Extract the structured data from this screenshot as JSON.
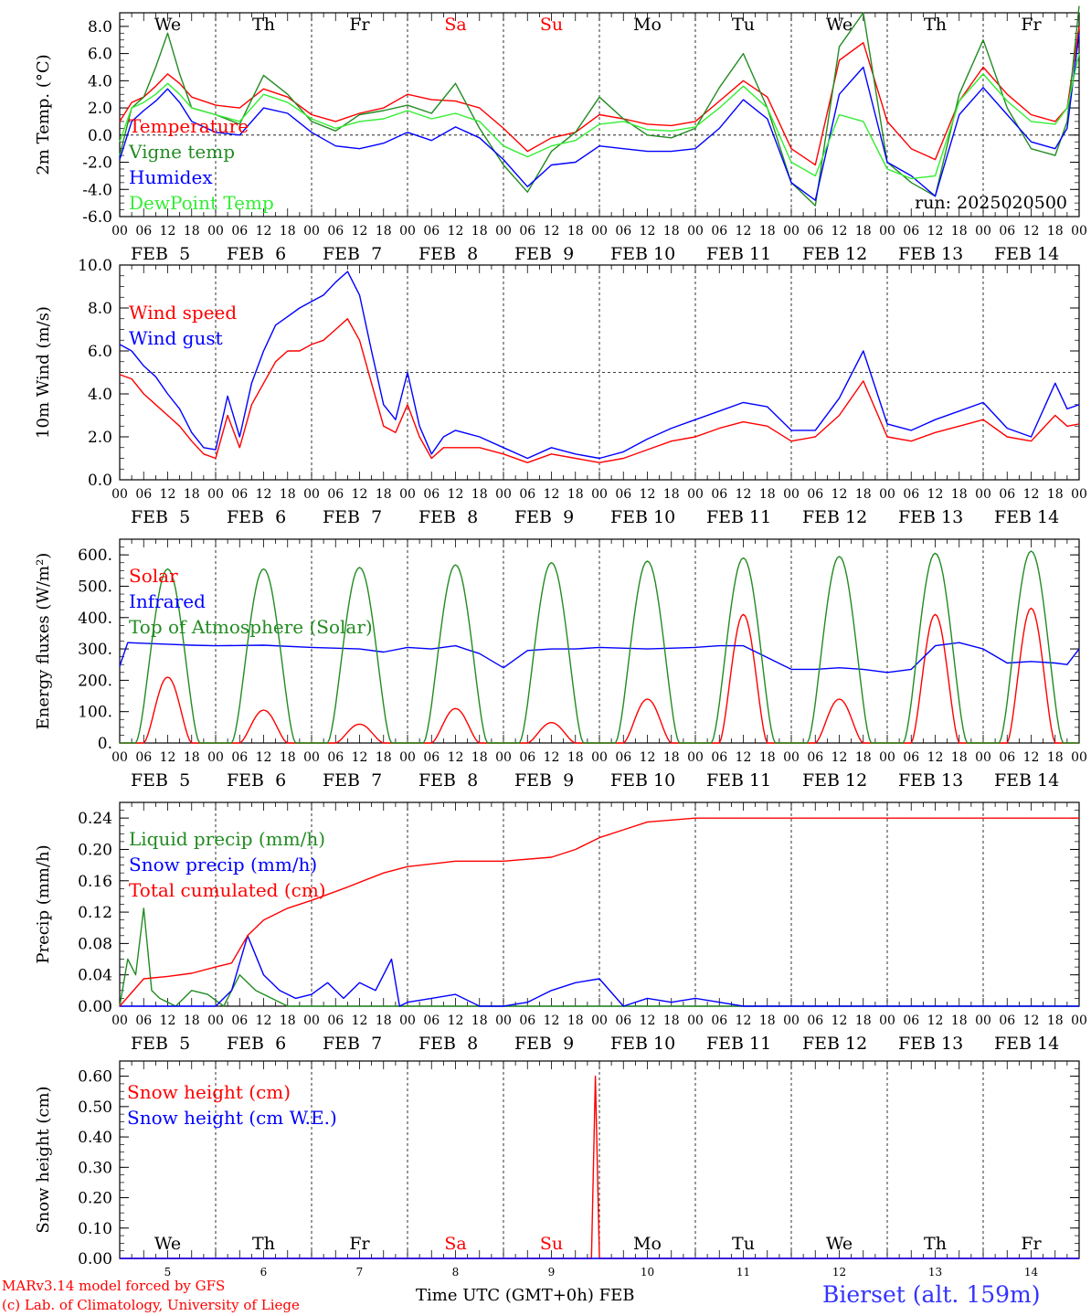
{
  "credits": {
    "model": "MARv3.14 model forced by GFS",
    "lab": "(c) Lab. of Climatology, University of Liege"
  },
  "xlabel": "Time UTC (GMT+0h) FEB",
  "station": "Bierset (alt. 159m)",
  "run_label": "run: 2025020500",
  "days": {
    "weekday": [
      "We",
      "Th",
      "Fr",
      "Sa",
      "Su",
      "Mo",
      "Tu",
      "We",
      "Th",
      "Fr"
    ],
    "weekday_color": [
      "#000000",
      "#000000",
      "#000000",
      "#ff0000",
      "#ff0000",
      "#000000",
      "#000000",
      "#000000",
      "#000000",
      "#000000"
    ],
    "date_label": [
      "FEB  5",
      "FEB  6",
      "FEB  7",
      "FEB  8",
      "FEB  9",
      "FEB 10",
      "FEB 11",
      "FEB 12",
      "FEB 13",
      "FEB 14"
    ],
    "day_number": [
      "5",
      "6",
      "7",
      "8",
      "9",
      "10",
      "11",
      "12",
      "13",
      "14"
    ],
    "hour_ticks": [
      "00",
      "06",
      "12",
      "18"
    ],
    "end_tick": "00"
  },
  "chart_data": [
    {
      "type": "line",
      "ylabel": "2m Temp. (°C)",
      "ylim": [
        -6,
        9
      ],
      "yticks": [
        "-6.0",
        "-4.0",
        "-2.0",
        "0.0",
        "2.0",
        "4.0",
        "6.0",
        "8.0"
      ],
      "ytick_values": [
        -6,
        -4,
        -2,
        0,
        2,
        4,
        6,
        8
      ],
      "hline": 0,
      "x_unit": "hours since FEB 5 00 UTC",
      "series": [
        {
          "name": "Temperature",
          "color": "#ff0000",
          "x": [
            0,
            3,
            6,
            9,
            12,
            15,
            18,
            24,
            30,
            36,
            42,
            48,
            54,
            60,
            66,
            72,
            78,
            84,
            90,
            96,
            102,
            108,
            114,
            120,
            126,
            132,
            138,
            144,
            150,
            156,
            162,
            168,
            174,
            180,
            186,
            192,
            198,
            204,
            210,
            216,
            222,
            228,
            234,
            237,
            240
          ],
          "values": [
            1.0,
            2.4,
            2.8,
            3.6,
            4.5,
            3.8,
            2.8,
            2.2,
            2.0,
            3.4,
            2.8,
            1.5,
            1.0,
            1.6,
            2.0,
            3.0,
            2.6,
            2.5,
            2.0,
            0.5,
            -1.2,
            -0.2,
            0.2,
            1.5,
            1.2,
            0.8,
            0.7,
            1.0,
            2.5,
            4.0,
            2.8,
            -1.0,
            -2.2,
            5.5,
            6.8,
            1.0,
            -1.0,
            -1.8,
            2.5,
            5.0,
            3.0,
            1.5,
            1.0,
            2.0,
            8.0
          ]
        },
        {
          "name": "Vigne temp",
          "color": "#228b22",
          "x": [
            0,
            3,
            6,
            9,
            12,
            15,
            18,
            24,
            30,
            36,
            42,
            48,
            54,
            60,
            66,
            72,
            78,
            84,
            90,
            96,
            102,
            108,
            114,
            120,
            126,
            132,
            138,
            144,
            150,
            156,
            162,
            168,
            174,
            180,
            186,
            192,
            198,
            204,
            210,
            216,
            222,
            228,
            234,
            237,
            240
          ],
          "values": [
            -1.5,
            2.0,
            2.8,
            5.0,
            7.5,
            4.5,
            2.0,
            1.5,
            0.8,
            4.4,
            3.0,
            1.0,
            0.3,
            1.5,
            1.8,
            2.2,
            1.6,
            3.8,
            0.5,
            -2.2,
            -4.2,
            -1.2,
            0.2,
            2.8,
            1.2,
            0.0,
            -0.2,
            0.5,
            3.5,
            6.0,
            2.0,
            -3.5,
            -5.2,
            6.5,
            9.0,
            -2.0,
            -3.5,
            -4.5,
            3.0,
            7.0,
            2.0,
            -1.0,
            -1.5,
            1.0,
            9.5
          ]
        },
        {
          "name": "Humidex",
          "color": "#0000ff",
          "x": [
            0,
            3,
            6,
            9,
            12,
            15,
            18,
            24,
            30,
            36,
            42,
            48,
            54,
            60,
            66,
            72,
            78,
            84,
            90,
            96,
            102,
            108,
            114,
            120,
            126,
            132,
            138,
            144,
            150,
            156,
            162,
            168,
            174,
            180,
            186,
            192,
            198,
            204,
            210,
            216,
            222,
            228,
            234,
            237,
            240
          ],
          "values": [
            -1.8,
            1.0,
            1.8,
            2.5,
            3.4,
            2.4,
            1.0,
            0.2,
            0.0,
            2.0,
            1.6,
            0.2,
            -0.8,
            -1.0,
            -0.6,
            0.2,
            -0.4,
            0.6,
            -0.2,
            -1.8,
            -3.8,
            -2.2,
            -2.0,
            -0.8,
            -1.0,
            -1.2,
            -1.2,
            -1.0,
            0.5,
            2.6,
            1.2,
            -3.5,
            -4.8,
            3.0,
            5.0,
            -2.0,
            -3.0,
            -4.5,
            1.5,
            3.5,
            1.5,
            -0.5,
            -1.0,
            0.5,
            7.5
          ]
        },
        {
          "name": "DewPoint Temp",
          "color": "#33ee33",
          "x": [
            0,
            3,
            6,
            9,
            12,
            15,
            18,
            24,
            30,
            36,
            42,
            48,
            54,
            60,
            66,
            72,
            78,
            84,
            90,
            96,
            102,
            108,
            114,
            120,
            126,
            132,
            138,
            144,
            150,
            156,
            162,
            168,
            174,
            180,
            186,
            192,
            198,
            204,
            210,
            216,
            222,
            228,
            234,
            237,
            240
          ],
          "values": [
            -0.5,
            2.0,
            2.4,
            3.0,
            3.8,
            3.0,
            2.0,
            1.5,
            1.0,
            3.0,
            2.4,
            1.2,
            0.5,
            1.0,
            1.2,
            1.8,
            1.2,
            1.6,
            1.0,
            -0.8,
            -1.6,
            -0.8,
            -0.4,
            0.8,
            1.0,
            0.4,
            0.3,
            0.6,
            2.0,
            3.6,
            2.0,
            -2.0,
            -3.0,
            1.5,
            1.0,
            -2.5,
            -3.2,
            -3.0,
            2.5,
            4.5,
            2.5,
            1.0,
            0.8,
            2.0,
            6.0
          ]
        }
      ]
    },
    {
      "type": "line",
      "ylabel": "10m Wind (m/s)",
      "ylim": [
        0,
        10
      ],
      "yticks": [
        "0.0",
        "2.0",
        "4.0",
        "6.0",
        "8.0",
        "10.0"
      ],
      "ytick_values": [
        0,
        2,
        4,
        6,
        8,
        10
      ],
      "hline": 5,
      "x_unit": "hours since FEB 5 00 UTC",
      "series": [
        {
          "name": "Wind speed",
          "color": "#ff0000",
          "x": [
            0,
            3,
            6,
            9,
            12,
            15,
            18,
            21,
            24,
            27,
            30,
            33,
            36,
            39,
            42,
            45,
            48,
            51,
            54,
            57,
            60,
            63,
            66,
            69,
            72,
            75,
            78,
            81,
            84,
            90,
            96,
            102,
            108,
            114,
            120,
            126,
            132,
            138,
            144,
            150,
            156,
            162,
            168,
            174,
            180,
            186,
            192,
            198,
            204,
            210,
            216,
            222,
            228,
            234,
            237,
            240
          ],
          "values": [
            4.9,
            4.7,
            4.0,
            3.5,
            3.0,
            2.5,
            1.8,
            1.2,
            1.0,
            3.0,
            1.5,
            3.5,
            4.5,
            5.5,
            6.0,
            6.0,
            6.3,
            6.5,
            7.0,
            7.5,
            6.5,
            4.5,
            2.5,
            2.2,
            3.5,
            2.0,
            1.0,
            1.5,
            1.5,
            1.5,
            1.2,
            0.8,
            1.2,
            1.0,
            0.8,
            1.0,
            1.4,
            1.8,
            2.0,
            2.4,
            2.7,
            2.5,
            1.8,
            2.0,
            3.0,
            4.6,
            2.0,
            1.8,
            2.2,
            2.5,
            2.8,
            2.0,
            1.8,
            3.0,
            2.5,
            2.6
          ]
        },
        {
          "name": "Wind gust",
          "color": "#0000ff",
          "x": [
            0,
            3,
            6,
            9,
            12,
            15,
            18,
            21,
            24,
            27,
            30,
            33,
            36,
            39,
            42,
            45,
            48,
            51,
            54,
            57,
            60,
            63,
            66,
            69,
            72,
            75,
            78,
            81,
            84,
            90,
            96,
            102,
            108,
            114,
            120,
            126,
            132,
            138,
            144,
            150,
            156,
            162,
            168,
            174,
            180,
            186,
            192,
            198,
            204,
            210,
            216,
            222,
            228,
            234,
            237,
            240
          ],
          "values": [
            6.3,
            6.0,
            5.3,
            4.8,
            4.0,
            3.3,
            2.2,
            1.5,
            1.4,
            3.9,
            2.0,
            4.5,
            6.0,
            7.2,
            7.6,
            8.0,
            8.3,
            8.6,
            9.2,
            9.7,
            8.6,
            6.0,
            3.5,
            2.8,
            5.0,
            2.5,
            1.2,
            2.0,
            2.3,
            2.0,
            1.5,
            1.0,
            1.5,
            1.2,
            1.0,
            1.3,
            1.9,
            2.4,
            2.8,
            3.2,
            3.6,
            3.4,
            2.3,
            2.3,
            3.8,
            6.0,
            2.6,
            2.3,
            2.8,
            3.2,
            3.6,
            2.4,
            2.0,
            4.5,
            3.3,
            3.5
          ]
        }
      ]
    },
    {
      "type": "line",
      "ylabel": "Energy fluxes (W/m²)",
      "ylim": [
        0,
        650
      ],
      "yticks": [
        "0.",
        "100.",
        "200.",
        "300.",
        "400.",
        "500.",
        "600."
      ],
      "ytick_values": [
        0,
        100,
        200,
        300,
        400,
        500,
        600
      ],
      "x_unit": "hours since FEB 5 00 UTC",
      "series": [
        {
          "name": "Solar",
          "color": "#ff0000",
          "noon_peaks": [
            210,
            105,
            60,
            110,
            65,
            140,
            410,
            140,
            410,
            430
          ]
        },
        {
          "name": "Infrared",
          "color": "#0000ff",
          "x": [
            0,
            2,
            6,
            12,
            18,
            24,
            36,
            48,
            60,
            66,
            72,
            78,
            84,
            90,
            96,
            102,
            108,
            114,
            120,
            132,
            144,
            150,
            156,
            168,
            174,
            180,
            186,
            192,
            198,
            204,
            210,
            216,
            222,
            228,
            234,
            237,
            240
          ],
          "values": [
            245,
            320,
            318,
            315,
            312,
            310,
            312,
            305,
            300,
            290,
            305,
            300,
            310,
            285,
            240,
            295,
            300,
            300,
            305,
            300,
            305,
            310,
            310,
            235,
            235,
            240,
            235,
            225,
            235,
            310,
            320,
            300,
            255,
            260,
            255,
            250,
            300
          ]
        },
        {
          "name": "Top of Atmosphere (Solar)",
          "color": "#228b22",
          "noon_peaks": [
            555,
            555,
            560,
            568,
            575,
            580,
            590,
            595,
            605,
            612
          ]
        }
      ]
    },
    {
      "type": "line",
      "ylabel": "Precip (mm/h)",
      "ylim": [
        0,
        0.26
      ],
      "yticks": [
        "0.00",
        "0.04",
        "0.08",
        "0.12",
        "0.16",
        "0.20",
        "0.24"
      ],
      "ytick_values": [
        0,
        0.04,
        0.08,
        0.12,
        0.16,
        0.2,
        0.24
      ],
      "x_unit": "hours since FEB 5 00 UTC",
      "series": [
        {
          "name": "Liquid precip (mm/h)",
          "color": "#228b22",
          "x": [
            0,
            2,
            4,
            6,
            8,
            10,
            14,
            18,
            22,
            26,
            30,
            34,
            38,
            42,
            48,
            60,
            72,
            96,
            120,
            144,
            168,
            240
          ],
          "values": [
            0.0,
            0.06,
            0.04,
            0.125,
            0.02,
            0.01,
            0.0,
            0.02,
            0.015,
            0.0,
            0.04,
            0.02,
            0.01,
            0.0,
            0.0,
            0.0,
            0.0,
            0.0,
            0.0,
            0.0,
            0.0,
            0.0
          ]
        },
        {
          "name": "Snow precip (mm/h)",
          "color": "#0000ff",
          "x": [
            0,
            24,
            28,
            32,
            36,
            40,
            44,
            48,
            52,
            56,
            60,
            64,
            68,
            70,
            72,
            78,
            84,
            90,
            96,
            102,
            108,
            114,
            120,
            126,
            132,
            138,
            144,
            150,
            156,
            162,
            168,
            240
          ],
          "values": [
            0.0,
            0.0,
            0.02,
            0.09,
            0.04,
            0.02,
            0.01,
            0.015,
            0.03,
            0.01,
            0.03,
            0.02,
            0.06,
            0.0,
            0.005,
            0.01,
            0.015,
            0.0,
            0.0,
            0.005,
            0.02,
            0.03,
            0.035,
            0.0,
            0.01,
            0.005,
            0.01,
            0.005,
            0.0,
            0.0,
            0.0,
            0.0
          ]
        },
        {
          "name": "Total cumulated (cm)",
          "color": "#ff0000",
          "x": [
            0,
            6,
            12,
            18,
            24,
            28,
            32,
            36,
            42,
            48,
            56,
            66,
            72,
            84,
            96,
            108,
            114,
            120,
            126,
            132,
            144,
            240
          ],
          "values": [
            0.0,
            0.035,
            0.038,
            0.042,
            0.05,
            0.055,
            0.09,
            0.11,
            0.125,
            0.135,
            0.15,
            0.17,
            0.178,
            0.185,
            0.185,
            0.19,
            0.2,
            0.215,
            0.225,
            0.235,
            0.24,
            0.24
          ]
        }
      ]
    },
    {
      "type": "line",
      "ylabel": "Snow height (cm)",
      "ylim": [
        0,
        0.65
      ],
      "yticks": [
        "0.00",
        "0.10",
        "0.20",
        "0.30",
        "0.40",
        "0.50",
        "0.60"
      ],
      "ytick_values": [
        0,
        0.1,
        0.2,
        0.3,
        0.4,
        0.5,
        0.6
      ],
      "x_unit": "hours since FEB 5 00 UTC",
      "series": [
        {
          "name": "Snow height (cm)",
          "color": "#ff0000",
          "x": [
            0,
            118,
            119,
            120,
            240
          ],
          "values": [
            0.0,
            0.0,
            0.6,
            0.0,
            0.0
          ]
        },
        {
          "name": "Snow height (cm W.E.)",
          "color": "#0000ff",
          "x": [
            0,
            240
          ],
          "values": [
            0.0,
            0.0
          ]
        }
      ]
    }
  ]
}
